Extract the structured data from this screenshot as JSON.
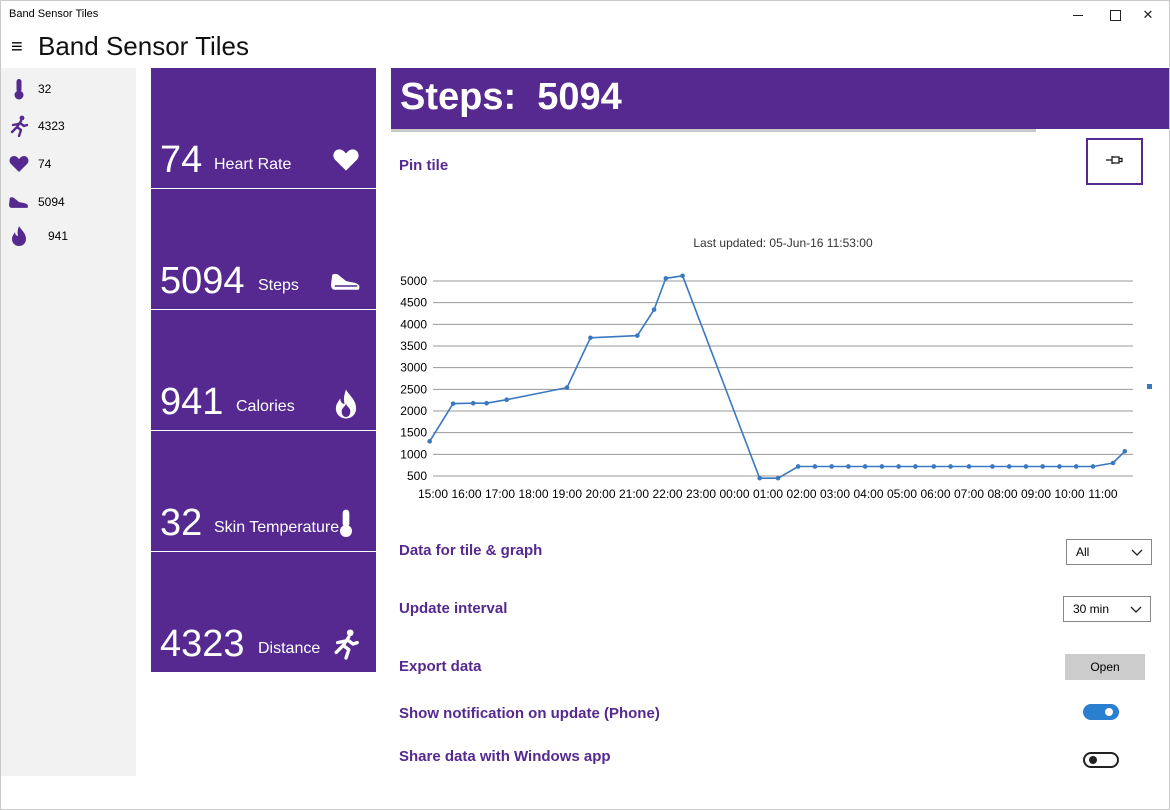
{
  "window": {
    "title": "Band Sensor Tiles"
  },
  "header": {
    "menu_glyph": "≡",
    "title": "Band Sensor Tiles"
  },
  "nav": {
    "items": [
      {
        "icon": "thermometer-icon",
        "value": "32"
      },
      {
        "icon": "running-person-icon",
        "value": "4323"
      },
      {
        "icon": "heart-icon",
        "value": "74"
      },
      {
        "icon": "shoe-icon",
        "value": "5094"
      },
      {
        "icon": "flame-icon",
        "value": "941"
      }
    ]
  },
  "tiles": [
    {
      "value": "74",
      "label": "Heart Rate",
      "icon": "heart-icon"
    },
    {
      "value": "5094",
      "label": "Steps",
      "icon": "shoe-icon"
    },
    {
      "value": "941",
      "label": "Calories",
      "icon": "flame-icon"
    },
    {
      "value": "32",
      "label": "Skin Temperature",
      "icon": "thermometer-icon"
    },
    {
      "value": "4323",
      "label": "Distance",
      "icon": "running-person-icon"
    }
  ],
  "detail": {
    "banner_label": "Steps:",
    "banner_value": "5094",
    "pin_label": "Pin tile",
    "data_label": "Data for tile & graph",
    "data_select": "All",
    "interval_label": "Update interval",
    "interval_select": "30 min",
    "export_label": "Export data",
    "export_button": "Open",
    "notify_label": "Show notification on update (Phone)",
    "notify_on": true,
    "share_label": "Share data with Windows app",
    "share_on": false
  },
  "colors": {
    "accent": "#55298f",
    "line": "#3a78c0",
    "toggle_on": "#2a7fd0"
  },
  "chart_data": {
    "type": "line",
    "title": "Last updated: 05-Jun-16 11:53:00",
    "ylim": [
      500,
      5000
    ],
    "yticks": [
      500,
      1000,
      1500,
      2000,
      2500,
      3000,
      3500,
      4000,
      4500,
      5000
    ],
    "xticks": [
      "15:00",
      "16:00",
      "17:00",
      "18:00",
      "19:00",
      "20:00",
      "21:00",
      "22:00",
      "23:00",
      "00:00",
      "01:00",
      "02:00",
      "03:00",
      "04:00",
      "05:00",
      "06:00",
      "07:00",
      "08:00",
      "09:00",
      "10:00",
      "11:00"
    ],
    "grid": true,
    "series": [
      {
        "x": [
          14.9,
          15.6,
          16.2,
          16.6,
          17.2,
          19.0,
          19.7,
          21.1,
          21.6,
          21.95,
          22.45,
          24.75,
          25.3,
          25.9,
          26.4,
          26.9,
          27.4,
          27.9,
          28.4,
          28.9,
          29.4,
          29.95,
          30.45,
          31.0,
          31.7,
          32.2,
          32.7,
          33.2,
          33.7,
          34.2,
          34.7,
          35.3,
          35.65
        ],
        "y": [
          1300,
          2170,
          2180,
          2180,
          2260,
          2540,
          3690,
          3740,
          4340,
          5060,
          5120,
          450,
          450,
          720,
          720,
          720,
          720,
          720,
          720,
          720,
          720,
          720,
          720,
          720,
          720,
          720,
          720,
          720,
          720,
          720,
          720,
          800,
          1070
        ]
      }
    ]
  }
}
